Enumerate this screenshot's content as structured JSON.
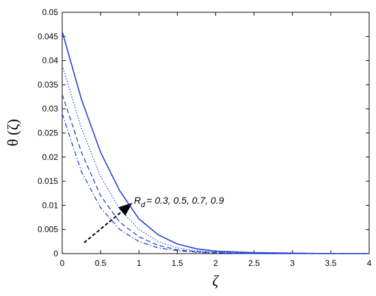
{
  "chart_data": {
    "type": "line",
    "y_label": "θ (ζ)",
    "x_label": "ζ",
    "annotation": {
      "symbol": "R",
      "subscript": "d",
      "text": "= 0.3, 0.5, 0.7, 0.9"
    },
    "x": [
      0,
      0.25,
      0.5,
      0.75,
      1,
      1.25,
      1.5,
      1.75,
      2,
      2.5,
      3,
      3.5,
      4
    ],
    "series": [
      {
        "color": "#1f3fd0",
        "style": "solid",
        "values": [
          0.046,
          0.032,
          0.021,
          0.013,
          0.0072,
          0.0039,
          0.002,
          0.001,
          0.0005,
          0.0002,
          0.0001,
          0,
          0
        ]
      },
      {
        "color": "#1f3fd0",
        "style": "dotted",
        "values": [
          0.039,
          0.026,
          0.016,
          0.0092,
          0.005,
          0.0025,
          0.0012,
          0.0006,
          0.0003,
          0.0001,
          0,
          0,
          0
        ]
      },
      {
        "color": "#1f3fd0",
        "style": "dashed",
        "values": [
          0.033,
          0.021,
          0.012,
          0.0065,
          0.0035,
          0.0017,
          0.0008,
          0.0004,
          0.0002,
          0,
          0,
          0,
          0
        ]
      },
      {
        "color": "#1f3fd0",
        "style": "dashdot",
        "values": [
          0.029,
          0.017,
          0.0095,
          0.005,
          0.0025,
          0.0012,
          0.0006,
          0.0003,
          0.0001,
          0,
          0,
          0,
          0
        ]
      }
    ],
    "xlim": [
      0,
      4
    ],
    "xticks": [
      0,
      0.5,
      1,
      1.5,
      2,
      2.5,
      3,
      3.5,
      4
    ],
    "ylim": [
      0,
      0.05
    ],
    "yticks": [
      0,
      0.005,
      0.01,
      0.015,
      0.02,
      0.025,
      0.03,
      0.035,
      0.04,
      0.045,
      0.05
    ]
  }
}
